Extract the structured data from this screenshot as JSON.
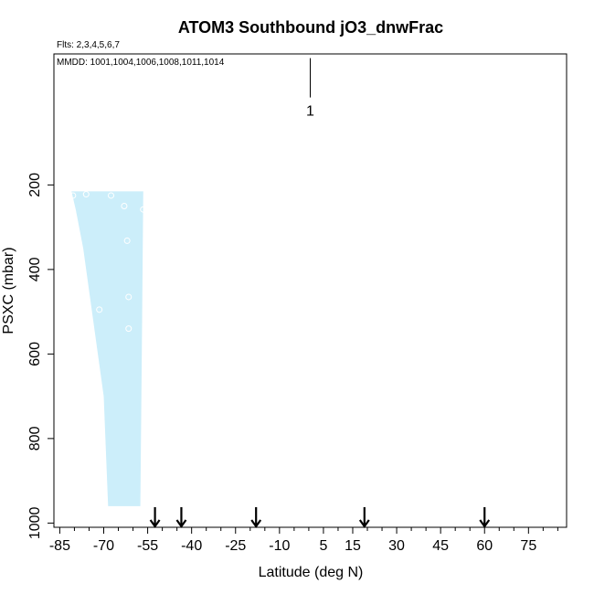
{
  "chart_data": {
    "type": "scatter",
    "title": "ATOM3 Southbound jO3_dnwFrac",
    "flights_note": "Flts: 2,3,4,5,6,7",
    "dates_note": "MMDD: 1001,1004,1006,1008,1011,1014",
    "xlabel": "Latitude (deg N)",
    "ylabel": "PSXC (mbar)",
    "xlim": [
      -87,
      88
    ],
    "ylim": [
      1010,
      -110
    ],
    "x_ticks": [
      -85,
      -70,
      -55,
      -40,
      -25,
      -10,
      5,
      15,
      30,
      45,
      60,
      75
    ],
    "y_ticks": [
      200,
      400,
      600,
      800,
      1000
    ],
    "colors": {
      "fill": "#cceefa",
      "points": "#ffffff",
      "axis": "#000000"
    },
    "fill_region": [
      {
        "lat": -81.0,
        "p": 215
      },
      {
        "lat": -56.5,
        "p": 215
      },
      {
        "lat": -57.0,
        "p": 600
      },
      {
        "lat": -57.5,
        "p": 960
      },
      {
        "lat": -68.5,
        "p": 960
      },
      {
        "lat": -70.0,
        "p": 700
      },
      {
        "lat": -74.0,
        "p": 500
      },
      {
        "lat": -77.0,
        "p": 350
      },
      {
        "lat": -79.5,
        "p": 260
      }
    ],
    "points": [
      {
        "lat": -80.5,
        "p": 225
      },
      {
        "lat": -76.0,
        "p": 222
      },
      {
        "lat": -67.5,
        "p": 225
      },
      {
        "lat": -63.0,
        "p": 250
      },
      {
        "lat": -56.5,
        "p": 258
      },
      {
        "lat": -62.0,
        "p": 332
      },
      {
        "lat": -61.5,
        "p": 465
      },
      {
        "lat": -71.5,
        "p": 495
      },
      {
        "lat": -61.5,
        "p": 540
      }
    ],
    "legend_marker": {
      "label": "1",
      "lat": 0.5,
      "p_top": -100,
      "p_bottom": -7
    },
    "arrows": [
      {
        "lat": -52.5
      },
      {
        "lat": -43.5
      },
      {
        "lat": -18.0
      },
      {
        "lat": 19.0
      },
      {
        "lat": 60.0
      }
    ]
  }
}
